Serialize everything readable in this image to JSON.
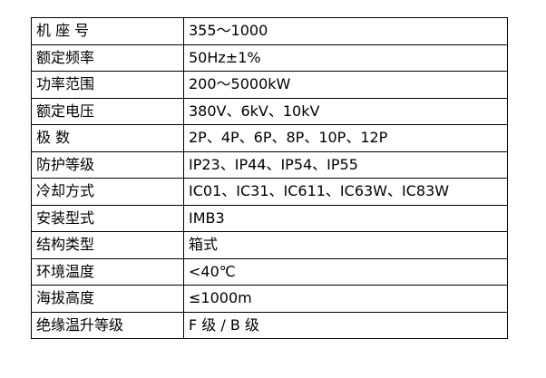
{
  "rows": [
    {
      "label": "机 座 号",
      "value": "355～1000"
    },
    {
      "label": "额定频率",
      "value": "50Hz±1%"
    },
    {
      "label": "功率范围",
      "value": "200～5000kW"
    },
    {
      "label": "额定电压",
      "value": "380V、6kV、10kV"
    },
    {
      "label": "极 数",
      "value": "2P、4P、6P、8P、10P、12P"
    },
    {
      "label": "防护等级",
      "value": "IP23、IP44、IP54、IP55"
    },
    {
      "label": "冷却方式",
      "value": "IC01、IC31、IC611、IC63W、IC83W"
    },
    {
      "label": "安装型式",
      "value": "IMB3"
    },
    {
      "label": "结构类型",
      "value": "箱式"
    },
    {
      "label": "环境温度",
      "value": "<40℃"
    },
    {
      "label": "海拔高度",
      "value": "≤1000m"
    },
    {
      "label": "绝缘温升等级",
      "value": "F 级 / B 级"
    }
  ]
}
